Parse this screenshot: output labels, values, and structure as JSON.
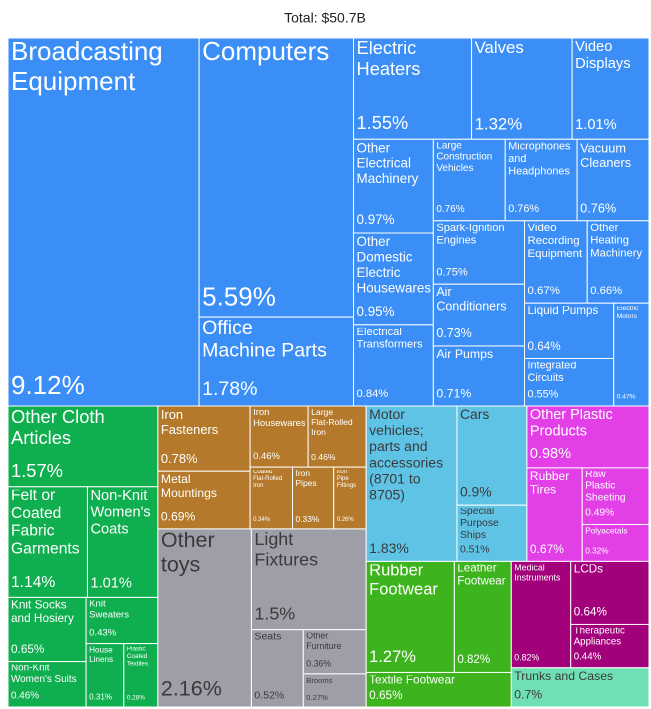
{
  "chart_data": {
    "type": "treemap",
    "title": "Total: $50.7B",
    "sectors": [
      {
        "color": "#3a8ef6",
        "names": [
          "Broadcasting Equipment",
          "Computers",
          "Office Machine Parts",
          "Electric Heaters",
          "Valves",
          "Video Displays",
          "Other Electrical Machinery",
          "Other Domestic Electric Housewares",
          "Electrical Transformers",
          "Large Construction Vehicles",
          "Microphones and Headphones",
          "Vacuum Cleaners",
          "Spark-Ignition Engines",
          "Air Conditioners",
          "Air Pumps",
          "Video Recording Equipment",
          "Other Heating Machinery",
          "Liquid Pumps",
          "Integrated Circuits",
          "Electric Motors"
        ],
        "values": [
          9.12,
          5.59,
          1.78,
          1.55,
          1.32,
          1.01,
          0.97,
          0.95,
          0.84,
          0.76,
          0.76,
          0.76,
          0.75,
          0.73,
          0.71,
          0.67,
          0.66,
          0.64,
          0.55,
          0.47
        ],
        "value_labels": [
          "9.12%",
          "5.59%",
          "1.78%",
          "1.55%",
          "1.32%",
          "1.01%",
          "0.97%",
          "0.95%",
          "0.84%",
          "0.76%",
          "0.76%",
          "0.76%",
          "0.75%",
          "0.73%",
          "0.71%",
          "0.67%",
          "0.66%",
          "0.64%",
          "0.55%",
          "0.47%"
        ]
      },
      {
        "color": "#0fae4e",
        "names": [
          "Other Cloth Articles",
          "Felt or Coated Fabric Garments",
          "Non-Knit Women's Coats",
          "Knit Socks and Hosiery",
          "Non-Knit Women's Suits",
          "Knit Sweaters",
          "House Linens",
          "Plastic Coated Textiles"
        ],
        "values": [
          1.57,
          1.14,
          1.01,
          0.65,
          0.46,
          0.43,
          0.31,
          0.28
        ],
        "value_labels": [
          "1.57%",
          "1.14%",
          "1.01%",
          "0.65%",
          "0.46%",
          "0.43%",
          "0.31%",
          "0.28%"
        ]
      },
      {
        "color": "#b4792b",
        "names": [
          "Iron Fasteners",
          "Metal Mountings",
          "Iron Housewares",
          "Large Flat-Rolled Iron",
          "Coated Flat-Rolled Iron",
          "Iron Pipes",
          "Iron Pipe Fittings"
        ],
        "values": [
          0.78,
          0.69,
          0.46,
          0.46,
          0.34,
          0.33,
          0.26
        ],
        "value_labels": [
          "0.78%",
          "0.69%",
          "0.46%",
          "0.46%",
          "0.34%",
          "0.33%",
          "0.26%"
        ]
      },
      {
        "color": "#9e9ea8",
        "names": [
          "Other toys",
          "Light Fixtures",
          "Seats",
          "Other Furniture",
          "Brooms"
        ],
        "values": [
          2.16,
          1.5,
          0.52,
          0.36,
          0.27
        ],
        "value_labels": [
          "2.16%",
          "1.5%",
          "0.52%",
          "0.36%",
          "0.27%"
        ]
      },
      {
        "color": "#5fc3e6",
        "names": [
          "Motor vehicles; parts and accessories (8701 to 8705)",
          "Cars",
          "Special Purpose Ships"
        ],
        "values": [
          1.83,
          0.9,
          0.51
        ],
        "value_labels": [
          "1.83%",
          "0.9%",
          "0.51%"
        ]
      },
      {
        "color": "#e23fe6",
        "names": [
          "Other Plastic Products",
          "Rubber Tires",
          "Raw Plastic Sheeting",
          "Polyacetals"
        ],
        "values": [
          0.98,
          0.67,
          0.49,
          0.32
        ],
        "value_labels": [
          "0.98%",
          "0.67%",
          "0.49%",
          "0.32%"
        ]
      },
      {
        "color": "#3db41d",
        "names": [
          "Rubber Footwear",
          "Leather Footwear",
          "Textile Footwear"
        ],
        "values": [
          1.27,
          0.82,
          0.65
        ],
        "value_labels": [
          "1.27%",
          "0.82%",
          "0.65%"
        ]
      },
      {
        "color": "#a3007b",
        "names": [
          "Medical Instruments",
          "LCDs",
          "Therapeutic Appliances"
        ],
        "values": [
          0.82,
          0.64,
          0.44
        ],
        "value_labels": [
          "0.82%",
          "0.64%",
          "0.44%"
        ]
      },
      {
        "color": "#6fe0b4",
        "names": [
          "Trunks and Cases"
        ],
        "values": [
          0.7
        ],
        "value_labels": [
          "0.7%"
        ]
      }
    ]
  }
}
